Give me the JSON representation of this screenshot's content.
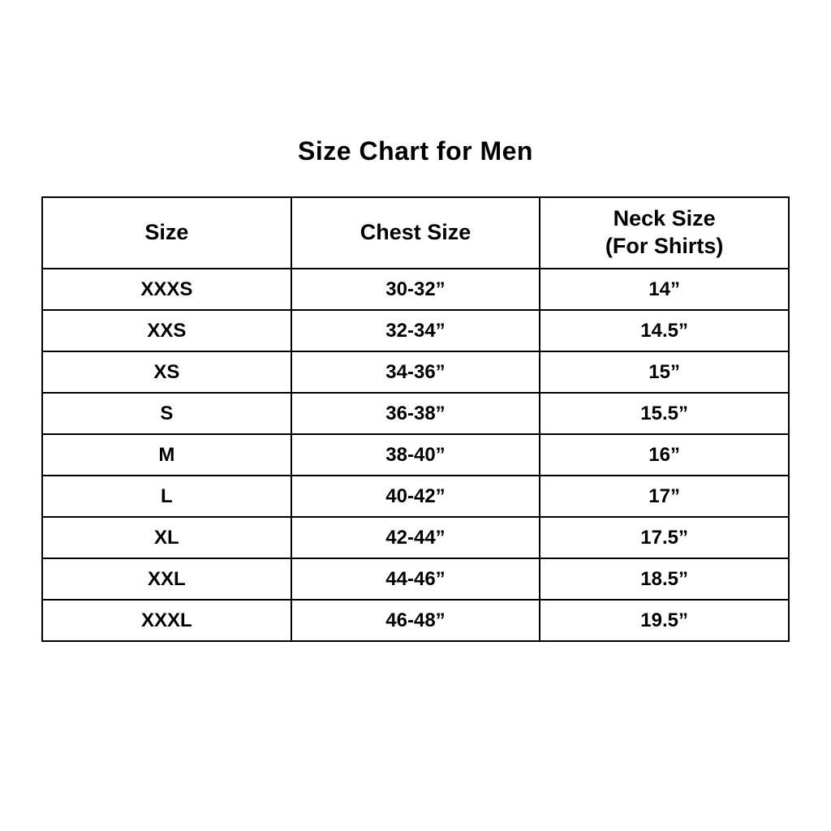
{
  "title": "Size Chart for Men",
  "table": {
    "header": {
      "size": "Size",
      "chest": "Chest Size",
      "neck_line1": "Neck Size",
      "neck_line2": "(For Shirts)"
    }
  },
  "chart_data": {
    "type": "table",
    "title": "Size Chart for Men",
    "columns": [
      "Size",
      "Chest Size",
      "Neck Size (For Shirts)"
    ],
    "rows": [
      [
        "XXXS",
        "30-32”",
        "14”"
      ],
      [
        "XXS",
        "32-34”",
        "14.5”"
      ],
      [
        "XS",
        "34-36”",
        "15”"
      ],
      [
        "S",
        "36-38”",
        "15.5”"
      ],
      [
        "M",
        "38-40”",
        "16”"
      ],
      [
        "L",
        "40-42”",
        "17”"
      ],
      [
        "XL",
        "42-44”",
        "17.5”"
      ],
      [
        "XXL",
        "44-46”",
        "18.5”"
      ],
      [
        "XXXL",
        "46-48”",
        "19.5”"
      ]
    ]
  }
}
